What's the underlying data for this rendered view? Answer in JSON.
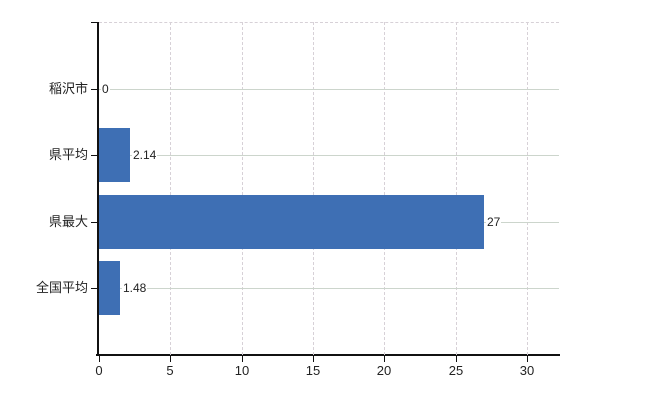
{
  "chart_data": {
    "type": "bar",
    "orientation": "horizontal",
    "categories": [
      "稲沢市",
      "県平均",
      "県最大",
      "全国平均"
    ],
    "values": [
      0,
      2.14,
      27,
      1.48
    ],
    "value_labels": [
      "0",
      "2.14",
      "27",
      "1.48"
    ],
    "xticks": [
      0,
      5,
      10,
      15,
      20,
      25,
      30
    ],
    "xtick_labels": [
      "0",
      "5",
      "10",
      "15",
      "20",
      "25",
      "30"
    ],
    "xlim": [
      0,
      32.3
    ],
    "grid": true,
    "legend_position": "none",
    "colors": {
      "bar": "#3e6fb4",
      "axis": "#111111",
      "text": "#222222",
      "grid_horizontal": "#ccd5cc",
      "grid_vertical": "#d7d1d7",
      "top_border": "#d7d1d7",
      "background": "#ffffff"
    }
  }
}
